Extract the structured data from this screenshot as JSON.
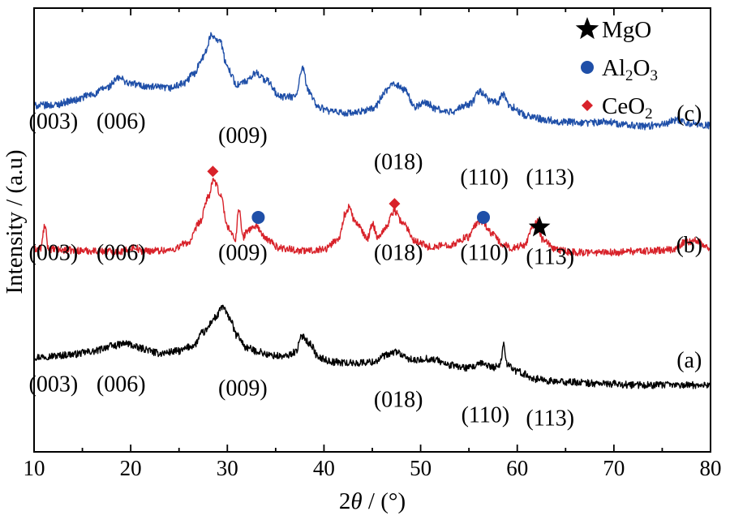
{
  "chart_data": {
    "type": "line",
    "xlabel_parts": [
      "2",
      "θ",
      " / (°)"
    ],
    "ylabel": "Intensity / (a.u)",
    "xlim": [
      10,
      80
    ],
    "x_ticks": [
      10,
      20,
      30,
      40,
      50,
      60,
      70,
      80
    ],
    "y_ticks": [],
    "grid": false,
    "legend_position": "top-right",
    "legend": [
      {
        "marker": "star",
        "color": "#000000",
        "parts": [
          [
            "MgO",
            "n"
          ]
        ]
      },
      {
        "marker": "circle",
        "color": "#1f4fa8",
        "parts": [
          [
            "Al",
            "n"
          ],
          [
            "2",
            "sub"
          ],
          [
            "O",
            "n"
          ],
          [
            "3",
            "sub"
          ]
        ]
      },
      {
        "marker": "diamond",
        "color": "#d8222a",
        "parts": [
          [
            "CeO",
            "n"
          ],
          [
            "2",
            "sub"
          ]
        ]
      }
    ],
    "series": [
      {
        "id": "a",
        "label": "(a)",
        "color": "#000000",
        "baseline": 0.0,
        "points": [
          [
            10,
            0.63
          ],
          [
            12,
            0.65
          ],
          [
            14,
            0.68
          ],
          [
            16,
            0.73
          ],
          [
            18,
            0.83
          ],
          [
            19.5,
            0.88
          ],
          [
            21,
            0.79
          ],
          [
            23,
            0.7
          ],
          [
            25,
            0.74
          ],
          [
            26.5,
            0.84
          ],
          [
            27.5,
            1.08
          ],
          [
            28.8,
            1.35
          ],
          [
            29.5,
            1.55
          ],
          [
            30.2,
            1.35
          ],
          [
            31,
            1.02
          ],
          [
            32,
            0.8
          ],
          [
            33,
            0.74
          ],
          [
            34.5,
            0.66
          ],
          [
            36,
            0.64
          ],
          [
            37,
            0.72
          ],
          [
            37.8,
            1.02
          ],
          [
            38.5,
            0.88
          ],
          [
            39.5,
            0.61
          ],
          [
            41,
            0.54
          ],
          [
            43,
            0.52
          ],
          [
            45,
            0.54
          ],
          [
            46.5,
            0.66
          ],
          [
            47.5,
            0.73
          ],
          [
            48.5,
            0.61
          ],
          [
            49.5,
            0.56
          ],
          [
            50.5,
            0.6
          ],
          [
            51.5,
            0.58
          ],
          [
            53,
            0.48
          ],
          [
            55,
            0.43
          ],
          [
            56.5,
            0.51
          ],
          [
            57.5,
            0.44
          ],
          [
            58.2,
            0.49
          ],
          [
            58.6,
            0.84
          ],
          [
            59,
            0.5
          ],
          [
            60,
            0.36
          ],
          [
            62,
            0.23
          ],
          [
            64,
            0.18
          ],
          [
            66,
            0.17
          ],
          [
            68,
            0.15
          ],
          [
            70,
            0.14
          ],
          [
            72,
            0.12
          ],
          [
            74,
            0.12
          ],
          [
            76,
            0.12
          ],
          [
            78,
            0.12
          ],
          [
            80,
            0.12
          ]
        ],
        "miller": [
          {
            "x": 12,
            "y": 0.0,
            "text": "(003)"
          },
          {
            "x": 19,
            "y": 0.0,
            "text": "(006)"
          },
          {
            "x": 31.6,
            "y": -0.07,
            "text": "(009)"
          },
          {
            "x": 47.7,
            "y": -0.28,
            "text": "(018)"
          },
          {
            "x": 56.7,
            "y": -0.56,
            "text": "(110)"
          },
          {
            "x": 63.4,
            "y": -0.62,
            "text": "(113)"
          }
        ],
        "markers": [],
        "letter_x": 77.8,
        "letter_y": 0.44
      },
      {
        "id": "b",
        "label": "(b)",
        "color": "#d8222a",
        "baseline": 2.4,
        "points": [
          [
            10,
            0.2
          ],
          [
            10.7,
            0.22
          ],
          [
            11.1,
            0.62
          ],
          [
            11.5,
            0.2
          ],
          [
            13,
            0.18
          ],
          [
            16,
            0.17
          ],
          [
            19,
            0.16
          ],
          [
            20.5,
            0.24
          ],
          [
            21,
            0.17
          ],
          [
            24,
            0.18
          ],
          [
            26,
            0.32
          ],
          [
            27.2,
            0.7
          ],
          [
            28,
            1.15
          ],
          [
            28.6,
            1.45
          ],
          [
            29.3,
            1.2
          ],
          [
            30,
            0.62
          ],
          [
            30.8,
            0.38
          ],
          [
            31.2,
            0.94
          ],
          [
            31.6,
            0.42
          ],
          [
            32.2,
            0.56
          ],
          [
            33,
            0.62
          ],
          [
            34,
            0.38
          ],
          [
            35.5,
            0.22
          ],
          [
            38,
            0.17
          ],
          [
            40,
            0.2
          ],
          [
            41.5,
            0.38
          ],
          [
            42.2,
            0.84
          ],
          [
            42.6,
            0.96
          ],
          [
            43.2,
            0.7
          ],
          [
            44.5,
            0.4
          ],
          [
            45,
            0.66
          ],
          [
            45.6,
            0.42
          ],
          [
            46.3,
            0.58
          ],
          [
            47.3,
            0.9
          ],
          [
            48.2,
            0.66
          ],
          [
            49.5,
            0.35
          ],
          [
            51,
            0.24
          ],
          [
            53,
            0.28
          ],
          [
            55,
            0.42
          ],
          [
            55.8,
            0.66
          ],
          [
            56.4,
            0.7
          ],
          [
            57.3,
            0.5
          ],
          [
            58.5,
            0.28
          ],
          [
            59.5,
            0.22
          ],
          [
            60.8,
            0.28
          ],
          [
            61.5,
            0.6
          ],
          [
            62,
            0.72
          ],
          [
            62.6,
            0.38
          ],
          [
            64,
            0.18
          ],
          [
            66,
            0.14
          ],
          [
            68,
            0.14
          ],
          [
            70,
            0.14
          ],
          [
            72,
            0.16
          ],
          [
            74,
            0.17
          ],
          [
            76,
            0.19
          ],
          [
            77.5,
            0.33
          ],
          [
            78.5,
            0.36
          ],
          [
            80,
            0.21
          ]
        ],
        "miller": [
          {
            "x": 12,
            "y": 0.0,
            "text": "(003)"
          },
          {
            "x": 19,
            "y": 0.0,
            "text": "(006)"
          },
          {
            "x": 31.6,
            "y": 0.0,
            "text": "(009)"
          },
          {
            "x": 47.7,
            "y": 0.0,
            "text": "(018)"
          },
          {
            "x": 56.6,
            "y": 0.0,
            "text": "(110)"
          },
          {
            "x": 63.4,
            "y": -0.07,
            "text": "(113)"
          }
        ],
        "markers": [
          {
            "shape": "diamond",
            "x": 28.5,
            "y": 1.62,
            "color": "#d8222a"
          },
          {
            "shape": "circle",
            "x": 33.2,
            "y": 0.78,
            "color": "#1f4fa8"
          },
          {
            "shape": "diamond",
            "x": 47.3,
            "y": 1.03,
            "color": "#d8222a"
          },
          {
            "shape": "circle",
            "x": 56.5,
            "y": 0.78,
            "color": "#1f4fa8"
          },
          {
            "shape": "star",
            "x": 62.3,
            "y": 0.6,
            "color": "#000000"
          }
        ],
        "letter_x": 77.8,
        "letter_y": 0.14
      },
      {
        "id": "c",
        "label": "(c)",
        "color": "#1f4fa8",
        "baseline": 4.8,
        "points": [
          [
            10,
            0.42
          ],
          [
            12,
            0.43
          ],
          [
            14,
            0.51
          ],
          [
            16,
            0.62
          ],
          [
            17.5,
            0.75
          ],
          [
            18.8,
            0.92
          ],
          [
            20,
            0.82
          ],
          [
            22,
            0.76
          ],
          [
            24,
            0.74
          ],
          [
            25.5,
            0.82
          ],
          [
            26.5,
            1.0
          ],
          [
            27.5,
            1.32
          ],
          [
            28.4,
            1.7
          ],
          [
            29.2,
            1.62
          ],
          [
            30,
            1.12
          ],
          [
            31,
            0.8
          ],
          [
            32,
            0.86
          ],
          [
            33,
            1.02
          ],
          [
            34,
            0.88
          ],
          [
            35.5,
            0.58
          ],
          [
            37,
            0.58
          ],
          [
            37.8,
            1.08
          ],
          [
            38.4,
            0.68
          ],
          [
            39.5,
            0.38
          ],
          [
            41,
            0.3
          ],
          [
            43,
            0.28
          ],
          [
            45,
            0.36
          ],
          [
            46.5,
            0.68
          ],
          [
            47.2,
            0.84
          ],
          [
            48.2,
            0.72
          ],
          [
            49.5,
            0.4
          ],
          [
            50.6,
            0.48
          ],
          [
            51.5,
            0.36
          ],
          [
            53,
            0.3
          ],
          [
            55,
            0.44
          ],
          [
            56.2,
            0.68
          ],
          [
            57.2,
            0.5
          ],
          [
            58,
            0.48
          ],
          [
            58.5,
            0.62
          ],
          [
            59.3,
            0.4
          ],
          [
            61,
            0.24
          ],
          [
            63,
            0.16
          ],
          [
            65,
            0.12
          ],
          [
            67,
            0.1
          ],
          [
            69,
            0.13
          ],
          [
            71,
            0.08
          ],
          [
            73,
            0.04
          ],
          [
            75,
            0.08
          ],
          [
            76.5,
            0.16
          ],
          [
            78,
            0.1
          ],
          [
            80,
            0.06
          ]
        ],
        "miller": [
          {
            "x": 12,
            "y": 0.0,
            "text": "(003)"
          },
          {
            "x": 19,
            "y": 0.0,
            "text": "(006)"
          },
          {
            "x": 31.6,
            "y": -0.26,
            "text": "(009)"
          },
          {
            "x": 47.7,
            "y": -0.74,
            "text": "(018)"
          },
          {
            "x": 56.6,
            "y": -1.02,
            "text": "(110)"
          },
          {
            "x": 63.4,
            "y": -1.02,
            "text": "(113)"
          }
        ],
        "markers": [],
        "letter_x": 77.8,
        "letter_y": 0.14
      }
    ]
  }
}
